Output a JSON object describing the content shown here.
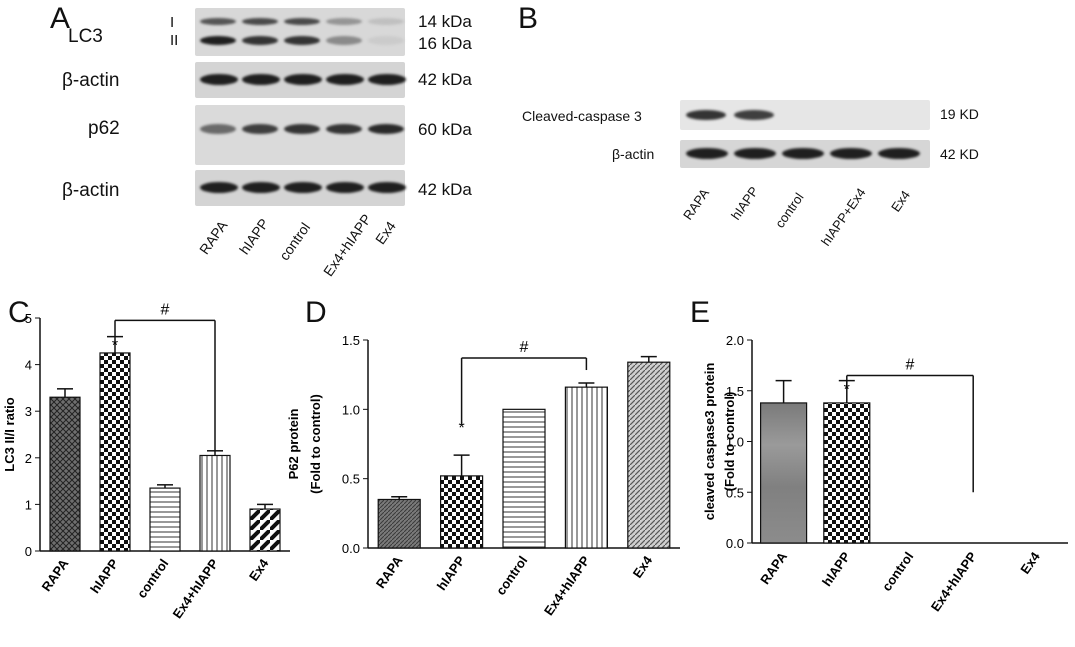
{
  "panels": {
    "a": "A",
    "b": "B",
    "c": "C",
    "d": "D",
    "e": "E"
  },
  "blot_a": {
    "rows": [
      {
        "label": "LC3",
        "marker_top": "I",
        "marker_bottom": "II",
        "mw_top": "14 kDa",
        "mw_bottom": "16 kDa",
        "band_top": [
          0.7,
          0.75,
          0.75,
          0.4,
          0.2
        ],
        "band_bottom": [
          0.95,
          0.85,
          0.85,
          0.45,
          0.15
        ]
      },
      {
        "label": "β-actin",
        "mw": "42 kDa",
        "bands": [
          0.95,
          0.95,
          0.95,
          0.95,
          0.95
        ]
      },
      {
        "label": "p62",
        "mw": "60 kDa",
        "bands": [
          0.6,
          0.8,
          0.85,
          0.85,
          0.9
        ]
      },
      {
        "label": "β-actin",
        "mw": "42 kDa",
        "bands": [
          0.95,
          0.95,
          0.95,
          0.95,
          0.95
        ]
      }
    ],
    "lanes": [
      "RAPA",
      "hIAPP",
      "control",
      "Ex4+hIAPP",
      "Ex4"
    ]
  },
  "blot_b": {
    "rows": [
      {
        "label": "Cleaved-caspase 3",
        "mw": "19 KD",
        "bands": [
          0.85,
          0.8,
          0.0,
          0.0,
          0.0
        ]
      },
      {
        "label": "β-actin",
        "mw": "42 KD",
        "bands": [
          0.95,
          0.95,
          0.95,
          0.95,
          0.95
        ]
      }
    ],
    "lanes": [
      "RAPA",
      "hIAPP",
      "control",
      "hIAPP+Ex4",
      "Ex4"
    ]
  },
  "chart_data": [
    {
      "type": "bar",
      "panel": "C",
      "ylabel": "LC3 II/I ratio",
      "ylim": [
        0,
        5
      ],
      "yticks": [
        0,
        1,
        2,
        3,
        4,
        5
      ],
      "categories": [
        "RAPA",
        "hIAPP",
        "control",
        "Ex4+hIAPP",
        "Ex4"
      ],
      "values": [
        3.3,
        4.25,
        1.35,
        2.05,
        0.9
      ],
      "errors": [
        0.18,
        0.35,
        0.07,
        0.1,
        0.1
      ],
      "patterns": [
        "crosshatch",
        "checker",
        "hlines",
        "vlines",
        "diag-thick"
      ],
      "annotations": [
        {
          "text": "*",
          "category": "hIAPP"
        }
      ],
      "bracket": {
        "text": "#",
        "from": "hIAPP",
        "to": "Ex4+hIAPP",
        "y": 4.95
      }
    },
    {
      "type": "bar",
      "panel": "D",
      "ylabel": "P62 protein",
      "ylabel2": "(Fold to control)",
      "ylim": [
        0,
        1.5
      ],
      "yticks": [
        "0.0",
        "0.5",
        "1.0",
        "1.5"
      ],
      "categories": [
        "RAPA",
        "hIAPP",
        "control",
        "Ex4+hIAPP",
        "Ex4"
      ],
      "values": [
        0.35,
        0.52,
        1.0,
        1.16,
        1.34
      ],
      "errors": [
        0.02,
        0.15,
        0.0,
        0.03,
        0.04
      ],
      "patterns": [
        "dense",
        "checker",
        "hlines",
        "vlines",
        "diag"
      ],
      "annotations": [
        {
          "text": "*",
          "category": "hIAPP"
        }
      ],
      "bracket": {
        "text": "#",
        "from": "hIAPP",
        "to": "Ex4+hIAPP",
        "y": 1.37
      }
    },
    {
      "type": "bar",
      "panel": "E",
      "ylabel": "cleaved caspase3 protein",
      "ylabel2": "(Fold to control)",
      "ylim": [
        0,
        2.0
      ],
      "yticks": [
        "0.0",
        "0.5",
        "1.0",
        "1.5",
        "2.0"
      ],
      "categories": [
        "RAPA",
        "hIAPP",
        "control",
        "Ex4+hIAPP",
        "Ex4"
      ],
      "values": [
        1.38,
        1.38,
        0.0,
        0.0,
        0.0
      ],
      "errors": [
        0.22,
        0.22,
        0.0,
        0.0,
        0.0
      ],
      "patterns": [
        "gradient",
        "checker",
        "none",
        "none",
        "none"
      ],
      "annotations": [
        {
          "text": "*",
          "category": "hIAPP"
        }
      ],
      "bracket": {
        "text": "#",
        "from": "hIAPP",
        "to": "Ex4+hIAPP",
        "y": 1.65,
        "y_end": 0.5
      }
    }
  ]
}
